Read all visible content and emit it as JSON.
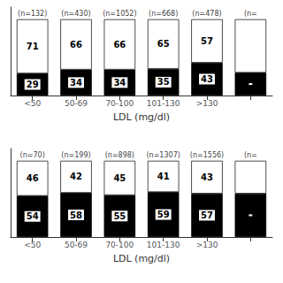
{
  "chart_data": [
    {
      "type": "bar",
      "categories": [
        "<50",
        "50-69",
        "70-100",
        "101-130",
        ">130",
        null
      ],
      "series": [
        {
          "color": "#000000",
          "values": [
            29,
            34,
            34,
            35,
            43,
            30
          ],
          "value_labels": [
            "29",
            "34",
            "34",
            "35",
            "43",
            null
          ]
        },
        {
          "color": "#ffffff",
          "values": [
            71,
            66,
            66,
            65,
            57,
            70
          ],
          "value_labels": [
            "71",
            "66",
            "66",
            "65",
            "57",
            null
          ]
        }
      ],
      "annotations": [
        "(n=132)",
        "(n=430)",
        "(n=1052)",
        "(n=668)",
        "(n=478)",
        "(n="
      ],
      "xlabel": "LDL (mg/dl)",
      "ylim": [
        0,
        116
      ],
      "stacked": true,
      "data_labels": true,
      "tick_labels": "x",
      "grid": false
    },
    {
      "type": "bar",
      "categories": [
        "<50",
        "50-69",
        "70-100",
        "101-130",
        ">130",
        null
      ],
      "series": [
        {
          "color": "#000000",
          "values": [
            54,
            58,
            55,
            59,
            57,
            57
          ],
          "value_labels": [
            "54",
            "58",
            "55",
            "59",
            "57",
            null
          ]
        },
        {
          "color": "#ffffff",
          "values": [
            46,
            42,
            45,
            41,
            43,
            43
          ],
          "value_labels": [
            "46",
            "42",
            "45",
            "41",
            "43",
            null
          ]
        }
      ],
      "annotations": [
        "(n=70)",
        "(n=199)",
        "(n=898)",
        "(n=1307)",
        "(n=1556)",
        "(n="
      ],
      "xlabel": "LDL (mg/dl)",
      "ylim": [
        0,
        116
      ],
      "stacked": true,
      "data_labels": true,
      "tick_labels": "x",
      "grid": false
    }
  ]
}
